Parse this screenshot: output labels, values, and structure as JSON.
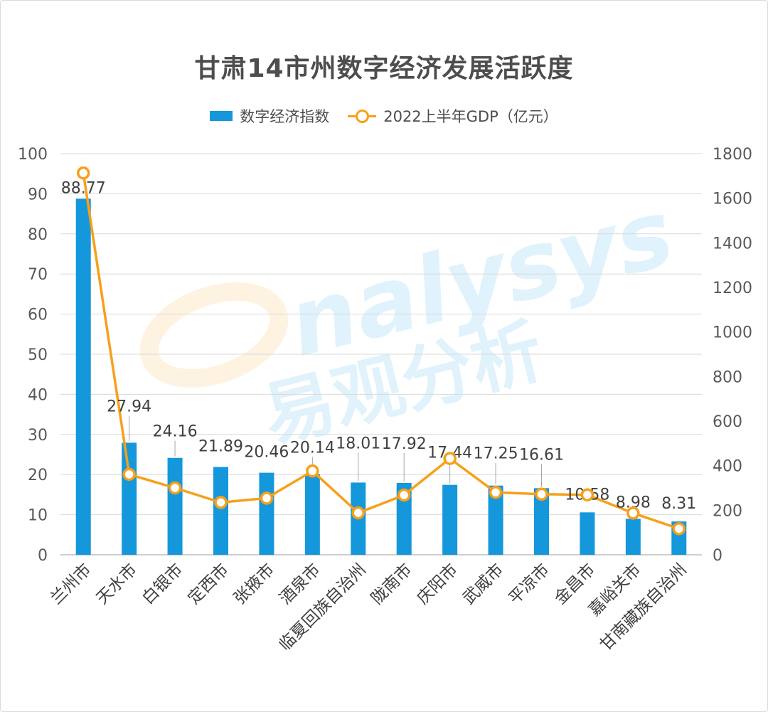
{
  "chart_data": {
    "type": "bar+line",
    "title": "甘肃14市州数字经济发展活跃度",
    "categories": [
      "兰州市",
      "天水市",
      "白银市",
      "定西市",
      "张掖市",
      "酒泉市",
      "临夏回族自治州",
      "陇南市",
      "庆阳市",
      "武威市",
      "平凉市",
      "金昌市",
      "嘉峪关市",
      "甘南藏族自治州"
    ],
    "series": [
      {
        "name": "数字经济指数",
        "type": "bar",
        "axis": "left",
        "color": "#1597db",
        "values": [
          88.77,
          27.94,
          24.16,
          21.89,
          20.46,
          20.14,
          18.01,
          17.92,
          17.44,
          17.25,
          16.61,
          10.58,
          8.98,
          8.31
        ],
        "labels": [
          "88.77",
          "27.94",
          "24.16",
          "21.89",
          "20.46",
          "20.14",
          "18.01",
          "17.92",
          "17.44",
          "17.25",
          "16.61",
          "10.58",
          "8.98",
          "8.31"
        ]
      },
      {
        "name": "2022上半年GDP（亿元）",
        "type": "line",
        "axis": "right",
        "color": "#f6a01a",
        "values": [
          1713,
          361,
          300,
          235,
          254,
          376,
          188,
          268,
          432,
          280,
          272,
          269,
          187,
          117
        ]
      }
    ],
    "y_left": {
      "min": 0,
      "max": 100,
      "ticks": [
        "0",
        "10",
        "20",
        "30",
        "40",
        "50",
        "60",
        "70",
        "80",
        "90",
        "100"
      ]
    },
    "y_right": {
      "min": 0,
      "max": 1800,
      "ticks": [
        "0",
        "200",
        "400",
        "600",
        "800",
        "1000",
        "1200",
        "1400",
        "1600",
        "1800"
      ]
    },
    "grid": true,
    "legend": "top-center"
  },
  "watermark": {
    "brand": "analysys",
    "cn": "易观分析"
  }
}
